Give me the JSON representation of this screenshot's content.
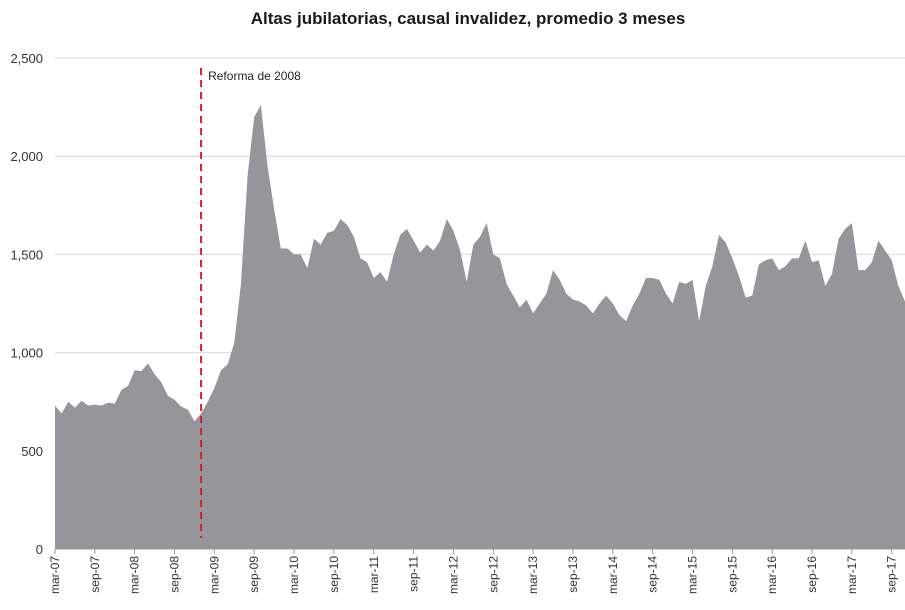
{
  "chart_data": {
    "type": "area",
    "title": "Altas jubilatorias, causal invalidez, promedio 3 meses",
    "xlabel": "",
    "ylabel": "",
    "ylim": [
      0,
      2500
    ],
    "yticks": [
      0,
      500,
      1000,
      1500,
      2000,
      2500
    ],
    "ytick_labels": [
      "0",
      "500",
      "1,000",
      "1,500",
      "2,000",
      "2,500"
    ],
    "x_start": "mar-07",
    "x_end": "dic-17",
    "xtick_labels": [
      "mar-07",
      "sep-07",
      "mar-08",
      "sep-08",
      "mar-09",
      "sep-09",
      "mar-10",
      "sep-10",
      "mar-11",
      "sep-11",
      "mar-12",
      "sep-12",
      "mar-13",
      "sep-13",
      "mar-14",
      "sep-14",
      "mar-15",
      "sep-15",
      "mar-16",
      "sep-16",
      "mar-17",
      "sep-17"
    ],
    "grid": true,
    "area_color": "#96969a",
    "annotation": {
      "label": "Reforma de 2008",
      "x": "ene-09",
      "color": "#d0202a"
    },
    "values": [
      730,
      690,
      750,
      720,
      755,
      730,
      735,
      730,
      745,
      740,
      810,
      830,
      910,
      905,
      945,
      890,
      850,
      780,
      760,
      725,
      710,
      650,
      690,
      750,
      820,
      910,
      940,
      1050,
      1350,
      1900,
      2200,
      2260,
      1950,
      1730,
      1530,
      1530,
      1500,
      1500,
      1430,
      1580,
      1550,
      1610,
      1620,
      1680,
      1650,
      1590,
      1480,
      1460,
      1380,
      1410,
      1360,
      1500,
      1600,
      1630,
      1570,
      1510,
      1550,
      1520,
      1570,
      1680,
      1620,
      1520,
      1360,
      1550,
      1590,
      1660,
      1500,
      1480,
      1350,
      1290,
      1230,
      1270,
      1200,
      1250,
      1300,
      1420,
      1370,
      1300,
      1270,
      1260,
      1240,
      1200,
      1250,
      1290,
      1250,
      1190,
      1160,
      1240,
      1300,
      1380,
      1380,
      1370,
      1300,
      1250,
      1360,
      1350,
      1370,
      1160,
      1340,
      1440,
      1600,
      1560,
      1480,
      1390,
      1280,
      1290,
      1450,
      1470,
      1480,
      1420,
      1440,
      1480,
      1480,
      1570,
      1460,
      1470,
      1340,
      1400,
      1580,
      1630,
      1660,
      1420,
      1420,
      1460,
      1570,
      1520,
      1470,
      1340,
      1260
    ]
  }
}
